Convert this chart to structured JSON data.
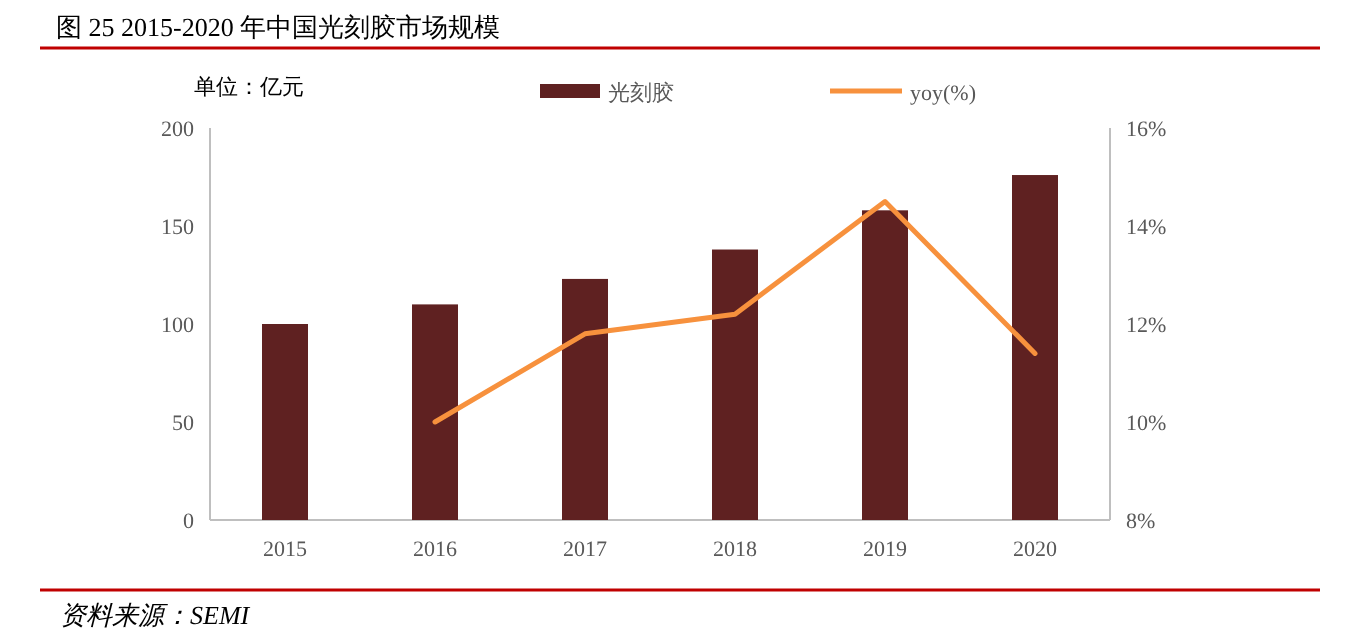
{
  "chart_data": {
    "type": "bar",
    "title": "图  25 2015-2020 年中国光刻胶市场规模",
    "annotations": [
      "单位：亿元",
      "资料来源：SEMI"
    ],
    "categories": [
      "2015",
      "2016",
      "2017",
      "2018",
      "2019",
      "2020"
    ],
    "series": [
      {
        "name": "光刻胶",
        "color": "#5f2121",
        "values": [
          100,
          110,
          123,
          138,
          158,
          176
        ]
      },
      {
        "name": "yoy(%)",
        "type": "line",
        "axis": "y2",
        "color": "#f7913d",
        "values": [
          null,
          10,
          11.8,
          12.2,
          14.5,
          11.4
        ]
      }
    ],
    "ylim": [
      0,
      200
    ],
    "yticks": [
      0,
      50,
      100,
      150,
      200
    ],
    "y2lim": [
      8,
      16
    ],
    "y2ticks": [
      {
        "value": 8,
        "label": "8%"
      },
      {
        "value": 10,
        "label": "10%"
      },
      {
        "value": 12,
        "label": "12%"
      },
      {
        "value": 14,
        "label": "14%"
      },
      {
        "value": 16,
        "label": "16%"
      }
    ],
    "legend": "top"
  }
}
